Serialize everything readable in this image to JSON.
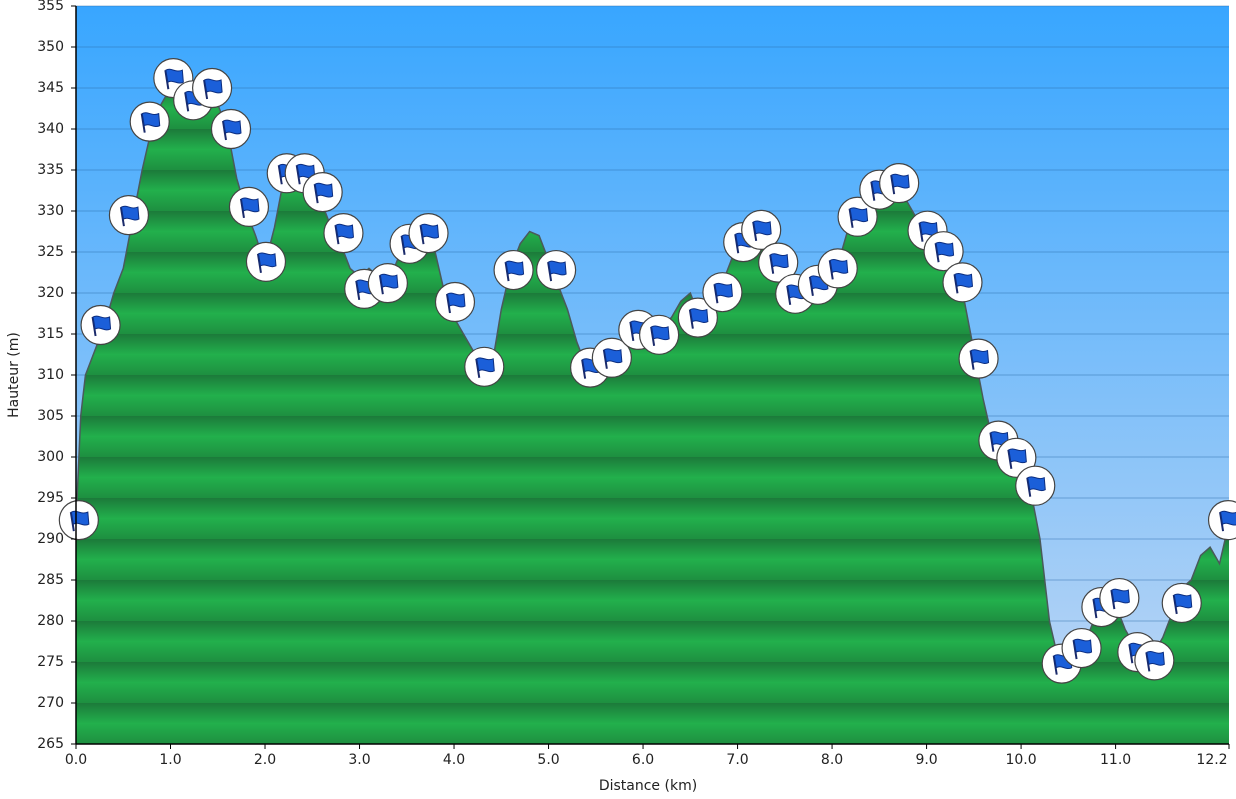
{
  "chart_data": {
    "type": "area",
    "xlabel": "Distance   (km)",
    "ylabel": "Hauteur (m)",
    "xlim": [
      0,
      12.2
    ],
    "ylim": [
      265,
      355
    ],
    "xticks": [
      {
        "value": 0,
        "label": "0.0"
      },
      {
        "value": 1,
        "label": "1.0"
      },
      {
        "value": 2,
        "label": "2.0"
      },
      {
        "value": 3,
        "label": "3.0"
      },
      {
        "value": 4,
        "label": "4.0"
      },
      {
        "value": 5,
        "label": "5.0"
      },
      {
        "value": 6,
        "label": "6.0"
      },
      {
        "value": 7,
        "label": "7.0"
      },
      {
        "value": 8,
        "label": "8.0"
      },
      {
        "value": 9,
        "label": "9.0"
      },
      {
        "value": 10,
        "label": "10.0"
      },
      {
        "value": 11,
        "label": "11.0"
      },
      {
        "value": 12.2,
        "label": "12.2"
      }
    ],
    "yticks": [
      265,
      270,
      275,
      280,
      285,
      290,
      295,
      300,
      305,
      310,
      315,
      320,
      325,
      330,
      335,
      340,
      345,
      350,
      355
    ],
    "grid": true,
    "color": "#22a64a",
    "x": [
      0,
      0.05,
      0.1,
      0.2,
      0.3,
      0.4,
      0.5,
      0.6,
      0.7,
      0.8,
      0.9,
      1.0,
      1.1,
      1.2,
      1.3,
      1.4,
      1.5,
      1.6,
      1.7,
      1.8,
      1.9,
      2.0,
      2.1,
      2.2,
      2.3,
      2.4,
      2.5,
      2.6,
      2.7,
      2.8,
      2.9,
      3.0,
      3.1,
      3.2,
      3.3,
      3.4,
      3.5,
      3.6,
      3.7,
      3.8,
      3.9,
      4.0,
      4.1,
      4.2,
      4.3,
      4.4,
      4.5,
      4.6,
      4.7,
      4.8,
      4.9,
      5.0,
      5.1,
      5.2,
      5.3,
      5.4,
      5.5,
      5.6,
      5.7,
      5.8,
      5.9,
      6.0,
      6.1,
      6.2,
      6.3,
      6.4,
      6.5,
      6.6,
      6.7,
      6.8,
      6.9,
      7.0,
      7.1,
      7.2,
      7.3,
      7.4,
      7.5,
      7.6,
      7.7,
      7.8,
      7.9,
      8.0,
      8.1,
      8.2,
      8.3,
      8.4,
      8.5,
      8.6,
      8.7,
      8.8,
      8.9,
      9.0,
      9.1,
      9.2,
      9.3,
      9.4,
      9.5,
      9.6,
      9.7,
      9.8,
      9.9,
      10.0,
      10.1,
      10.2,
      10.3,
      10.4,
      10.5,
      10.6,
      10.7,
      10.8,
      10.9,
      11.0,
      11.1,
      11.2,
      11.3,
      11.4,
      11.5,
      11.6,
      11.7,
      11.8,
      11.9,
      12.0,
      12.1,
      12.2
    ],
    "values": [
      292,
      305,
      310,
      313,
      316,
      320,
      323,
      329,
      335,
      340,
      343,
      345,
      344,
      343,
      343,
      344,
      343,
      340,
      334,
      330,
      327,
      323.5,
      328,
      334,
      335,
      334,
      333,
      331,
      328,
      326,
      323,
      322,
      323,
      322,
      321,
      324,
      326,
      327,
      327,
      325,
      320,
      317,
      315,
      313,
      311,
      311,
      318,
      323,
      326,
      327.5,
      327,
      324,
      321,
      318,
      314,
      311,
      310,
      311,
      312,
      314,
      315,
      315.5,
      316,
      316,
      317,
      319,
      320,
      317,
      318,
      320,
      323,
      326,
      327,
      328,
      326,
      323,
      321,
      320,
      320,
      321,
      322,
      323,
      325,
      329,
      330,
      331,
      332,
      333,
      333,
      331,
      329,
      327,
      325,
      324,
      322,
      319,
      313,
      307,
      302,
      300,
      299,
      298,
      296,
      290,
      280,
      275,
      275,
      276,
      278,
      281,
      282,
      282,
      279,
      277,
      276,
      276,
      278,
      281,
      284,
      285,
      288,
      289,
      287,
      292
    ],
    "markers": {
      "x": [
        0.03,
        0.26,
        0.56,
        0.78,
        1.03,
        1.24,
        1.44,
        1.64,
        1.83,
        2.01,
        2.23,
        2.42,
        2.61,
        2.83,
        3.05,
        3.3,
        3.53,
        3.73,
        4.01,
        4.32,
        4.63,
        5.08,
        5.44,
        5.67,
        5.95,
        6.17,
        6.58,
        6.84,
        7.06,
        7.25,
        7.43,
        7.61,
        7.85,
        8.06,
        8.27,
        8.5,
        8.71,
        9.01,
        9.18,
        9.38,
        9.55,
        9.76,
        9.95,
        10.15,
        10.43,
        10.64,
        10.85,
        11.04,
        11.23,
        11.41,
        11.7,
        12.19
      ],
      "y": [
        292.3,
        316.1,
        329.5,
        340.9,
        346.2,
        343.5,
        345,
        340,
        330.5,
        323.8,
        334.6,
        334.6,
        332.3,
        327.3,
        320.5,
        321.2,
        326,
        327.3,
        318.9,
        311,
        322.8,
        322.8,
        310.9,
        312.1,
        315.5,
        314.9,
        317,
        320.1,
        326.2,
        327.7,
        323.7,
        319.9,
        321,
        323,
        329.3,
        332.6,
        333.4,
        327.6,
        325.1,
        321.3,
        312,
        302,
        299.9,
        296.5,
        274.8,
        276.7,
        281.7,
        282.8,
        276.2,
        275.2,
        282.2,
        292.3
      ]
    }
  }
}
